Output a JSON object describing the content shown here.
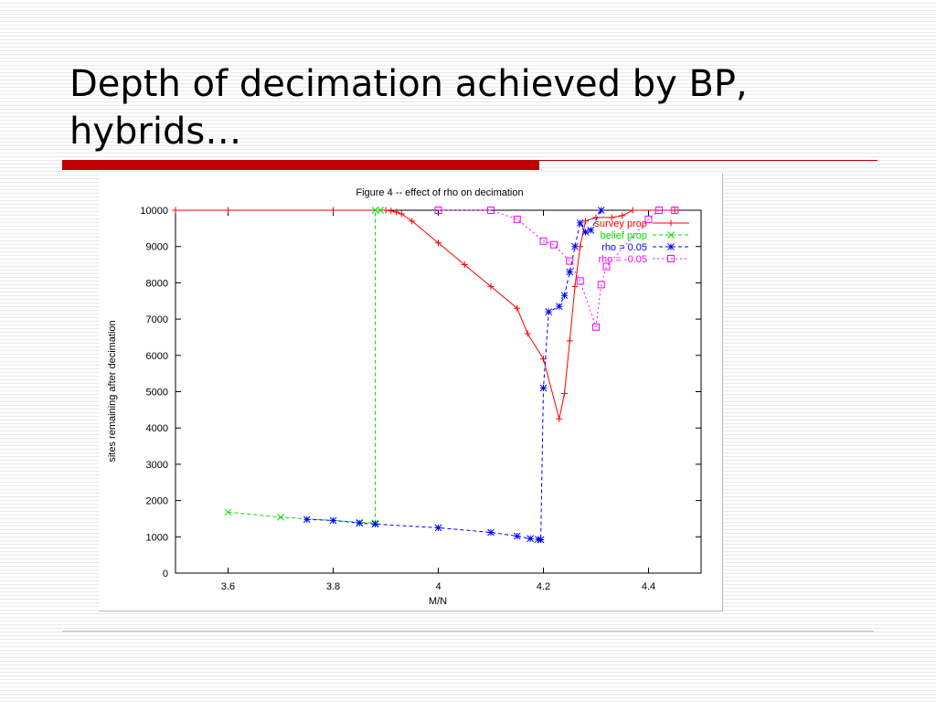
{
  "slide": {
    "title_line1": "Depth of decimation achieved by BP,",
    "title_line2": "hybrids…"
  },
  "colors": {
    "title_bar": "#c00000",
    "survey_prop": "#ff0000",
    "belief_prop": "#00dd00",
    "rho_pos": "#0000ff",
    "rho_neg": "#ff00ff"
  },
  "chart_data": {
    "type": "line",
    "title": "Figure 4 -- effect of rho on decimation",
    "xlabel": "M/N",
    "ylabel": "sites remaining after decimation",
    "xlim": [
      3.5,
      4.5
    ],
    "ylim": [
      0,
      10000
    ],
    "xticks": [
      3.6,
      3.8,
      4,
      4.2,
      4.4
    ],
    "xtick_labels": [
      "3.6",
      "3.8",
      "4",
      "4.2",
      "4.4"
    ],
    "yticks": [
      0,
      1000,
      2000,
      3000,
      4000,
      5000,
      6000,
      7000,
      8000,
      9000,
      10000
    ],
    "ytick_labels": [
      "0",
      "1000",
      "2000",
      "3000",
      "4000",
      "5000",
      "6000",
      "7000",
      "8000",
      "9000",
      "10000"
    ],
    "grid": false,
    "legend_position": "top-right",
    "series": [
      {
        "name": "survey prop",
        "color": "#ff0000",
        "dash": "",
        "marker": "plus",
        "x": [
          3.5,
          3.6,
          3.8,
          3.9,
          3.91,
          3.92,
          3.93,
          3.95,
          4.0,
          4.05,
          4.1,
          4.15,
          4.17,
          4.2,
          4.23,
          4.24,
          4.25,
          4.26,
          4.27,
          4.28,
          4.3,
          4.33,
          4.35,
          4.37,
          4.45
        ],
        "y": [
          10000,
          10000,
          10000,
          10000,
          9980,
          9950,
          9900,
          9700,
          9100,
          8500,
          7900,
          7300,
          6600,
          5900,
          4250,
          4950,
          6400,
          7900,
          9000,
          9700,
          9800,
          9800,
          9850,
          10000,
          10000
        ]
      },
      {
        "name": "belief prop",
        "color": "#00dd00",
        "dash": "4,3",
        "marker": "cross",
        "x": [
          3.6,
          3.7,
          3.8,
          3.85,
          3.88,
          3.88,
          3.89
        ],
        "y": [
          1680,
          1540,
          1450,
          1400,
          1380,
          10000,
          10000
        ]
      },
      {
        "name": "rho = 0.05",
        "color": "#0000ff",
        "dash": "4,3",
        "marker": "star",
        "x": [
          3.75,
          3.8,
          3.85,
          3.88,
          4.0,
          4.1,
          4.15,
          4.175,
          4.19,
          4.195,
          4.2,
          4.21,
          4.23,
          4.24,
          4.25,
          4.26,
          4.27,
          4.28,
          4.29,
          4.31
        ],
        "y": [
          1480,
          1450,
          1380,
          1350,
          1250,
          1120,
          1020,
          950,
          930,
          920,
          5100,
          7200,
          7350,
          7650,
          8300,
          9000,
          9650,
          9400,
          9450,
          10000
        ]
      },
      {
        "name": "rho = -0.05",
        "color": "#ff00ff",
        "dash": "2,3",
        "marker": "square",
        "x": [
          4.0,
          4.1,
          4.15,
          4.2,
          4.22,
          4.25,
          4.27,
          4.3,
          4.31,
          4.32,
          4.4,
          4.42,
          4.45
        ],
        "y": [
          10000,
          10000,
          9750,
          9150,
          9050,
          8600,
          8050,
          6780,
          7950,
          8450,
          9750,
          10000,
          10000
        ]
      }
    ]
  }
}
